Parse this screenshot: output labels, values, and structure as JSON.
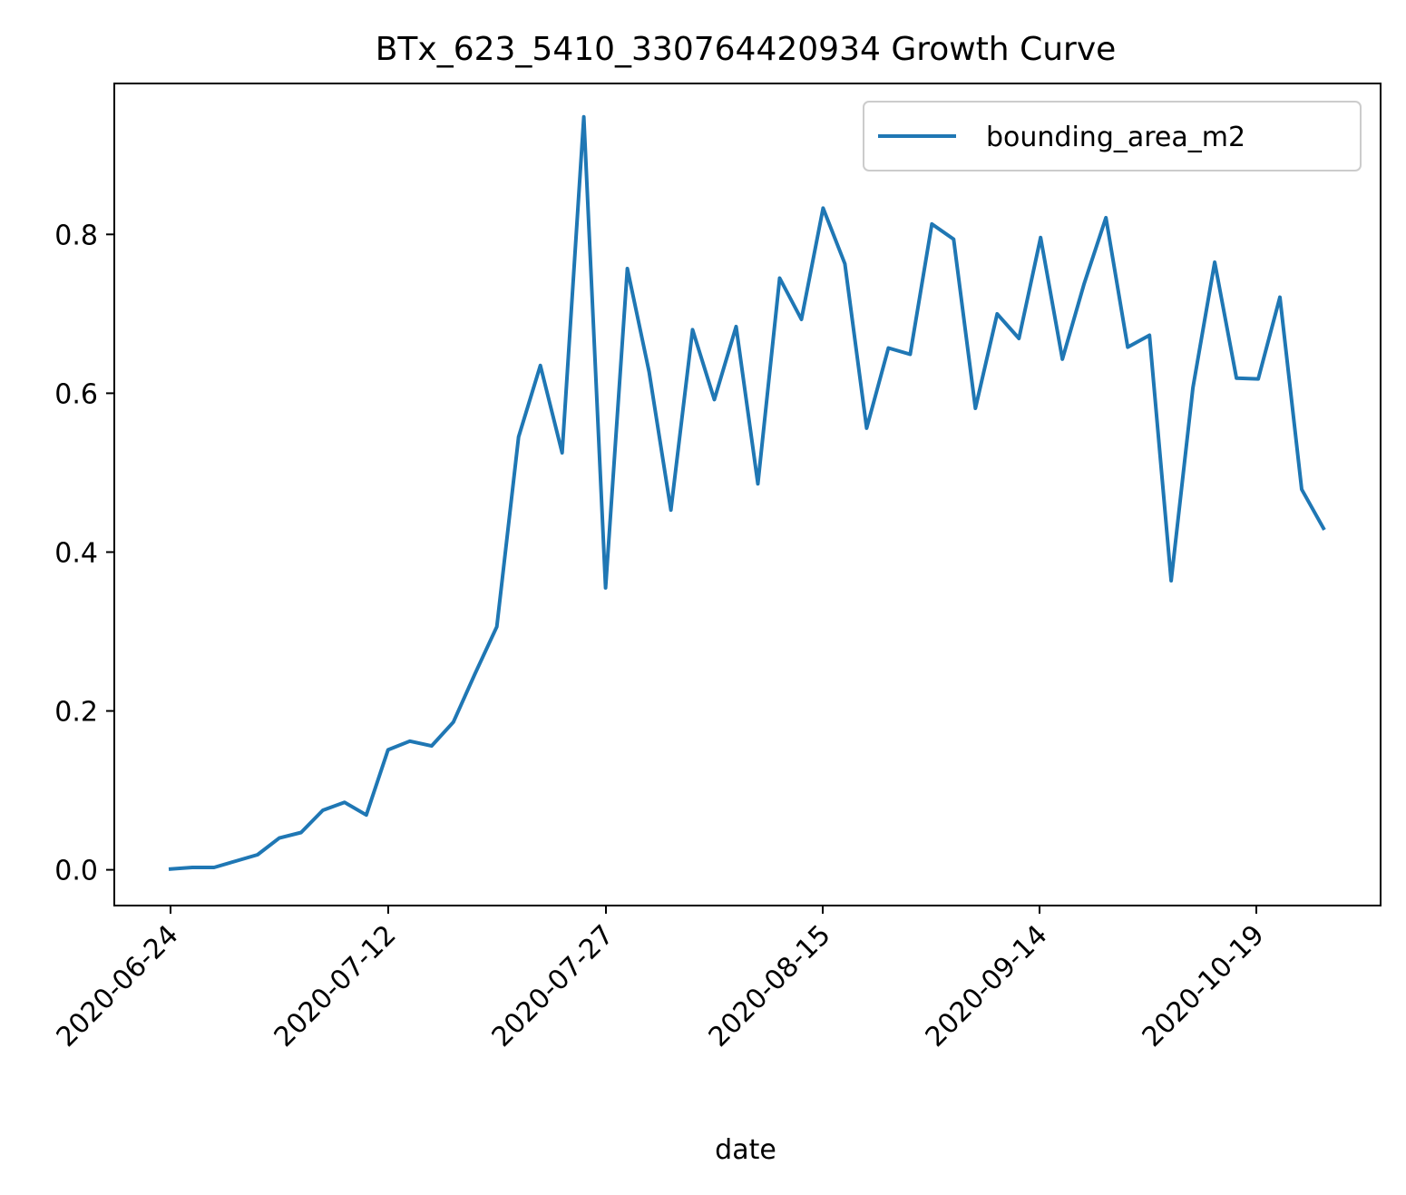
{
  "chart_data": {
    "type": "line",
    "title": "BTx_623_5410_330764420934 Growth Curve",
    "xlabel": "date",
    "ylabel": "",
    "x_tick_labels": [
      "2020-06-24",
      "2020-07-12",
      "2020-07-27",
      "2020-08-15",
      "2020-09-14",
      "2020-10-19"
    ],
    "y_ticks": [
      0.0,
      0.2,
      0.4,
      0.6,
      0.8
    ],
    "y_tick_labels": [
      "0.0",
      "0.2",
      "0.4",
      "0.6",
      "0.8"
    ],
    "ylim": [
      -0.045,
      0.99
    ],
    "legend_position": "top-right",
    "grid": false,
    "series": [
      {
        "name": "bounding_area_m2",
        "color": "#1f77b4",
        "values": [
          0.001,
          0.003,
          0.003,
          0.011,
          0.019,
          0.04,
          0.047,
          0.075,
          0.085,
          0.069,
          0.151,
          0.162,
          0.156,
          0.186,
          0.247,
          0.306,
          0.545,
          0.635,
          0.525,
          0.948,
          0.355,
          0.757,
          0.627,
          0.453,
          0.68,
          0.592,
          0.684,
          0.486,
          0.745,
          0.693,
          0.833,
          0.763,
          0.556,
          0.657,
          0.649,
          0.813,
          0.794,
          0.581,
          0.7,
          0.669,
          0.796,
          0.643,
          0.738,
          0.821,
          0.658,
          0.673,
          0.364,
          0.607,
          0.765,
          0.619,
          0.618,
          0.721,
          0.479,
          0.43
        ]
      }
    ]
  }
}
